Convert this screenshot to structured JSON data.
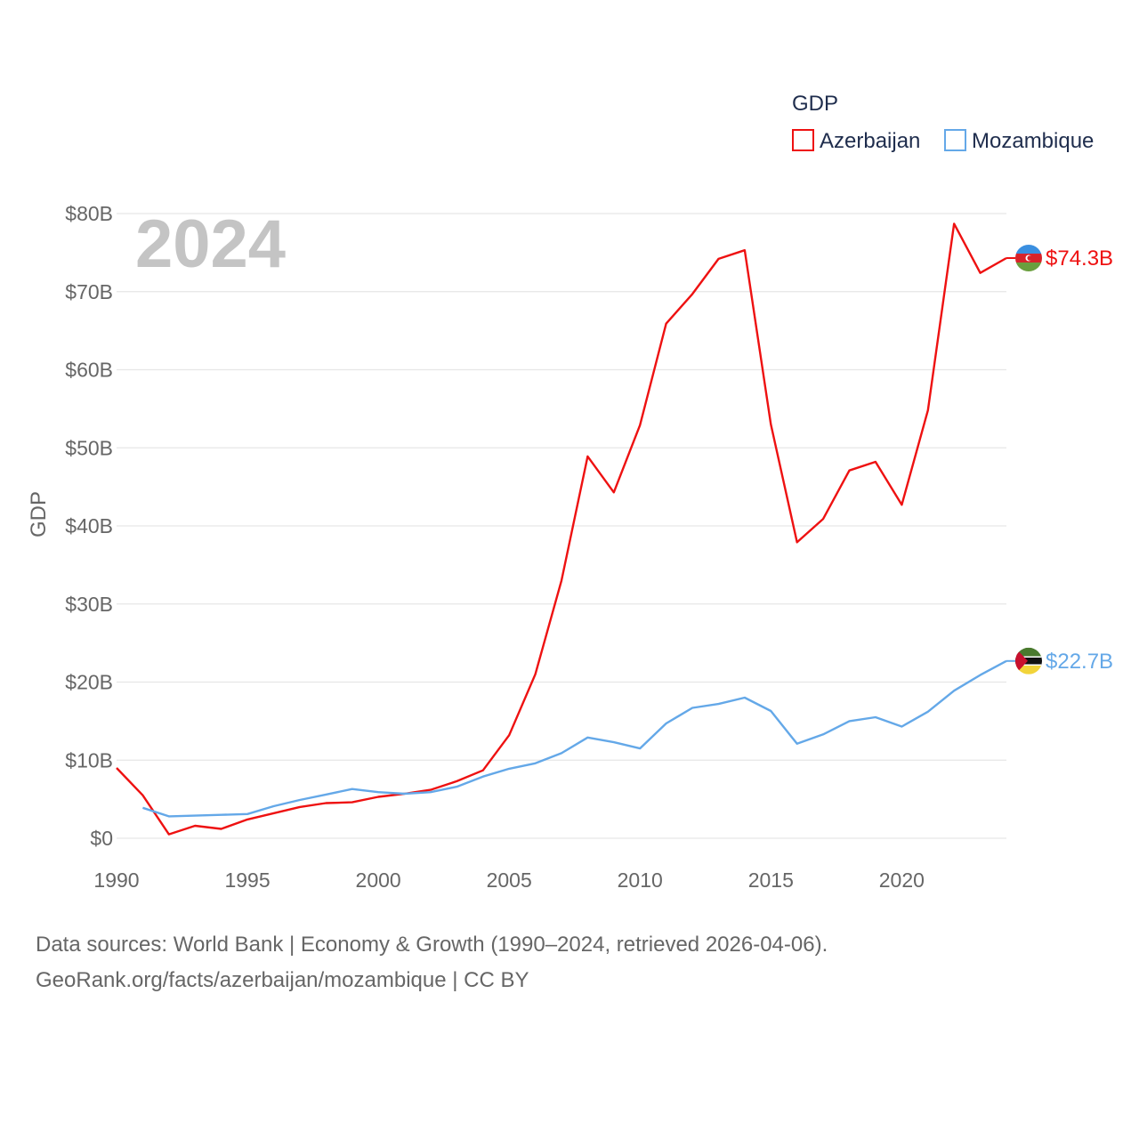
{
  "chart_data": {
    "type": "line",
    "legend_title": "GDP",
    "ylabel": "GDP",
    "year_label": "2024",
    "ylim": [
      0,
      80
    ],
    "xlim": [
      1990,
      2024
    ],
    "y_ticks": [
      {
        "value": 0,
        "label": "$0"
      },
      {
        "value": 10,
        "label": "$10B"
      },
      {
        "value": 20,
        "label": "$20B"
      },
      {
        "value": 30,
        "label": "$30B"
      },
      {
        "value": 40,
        "label": "$40B"
      },
      {
        "value": 50,
        "label": "$50B"
      },
      {
        "value": 60,
        "label": "$60B"
      },
      {
        "value": 70,
        "label": "$70B"
      },
      {
        "value": 80,
        "label": "$80B"
      }
    ],
    "x_ticks": [
      {
        "value": 1990,
        "label": "1990"
      },
      {
        "value": 1995,
        "label": "1995"
      },
      {
        "value": 2000,
        "label": "2000"
      },
      {
        "value": 2005,
        "label": "2005"
      },
      {
        "value": 2010,
        "label": "2010"
      },
      {
        "value": 2015,
        "label": "2015"
      },
      {
        "value": 2020,
        "label": "2020"
      }
    ],
    "series": [
      {
        "name": "Azerbaijan",
        "color": "#ee1111",
        "end_label": "$74.3B",
        "x": [
          1990,
          1991,
          1992,
          1993,
          1994,
          1995,
          1996,
          1997,
          1998,
          1999,
          2000,
          2001,
          2002,
          2003,
          2004,
          2005,
          2006,
          2007,
          2008,
          2009,
          2010,
          2011,
          2012,
          2013,
          2014,
          2015,
          2016,
          2017,
          2018,
          2019,
          2020,
          2021,
          2022,
          2023,
          2024
        ],
        "values": [
          9.0,
          5.5,
          0.5,
          1.6,
          1.2,
          2.4,
          3.2,
          4.0,
          4.5,
          4.6,
          5.3,
          5.7,
          6.2,
          7.3,
          8.7,
          13.2,
          21.0,
          33.0,
          48.9,
          44.3,
          52.9,
          65.9,
          69.7,
          74.2,
          75.3,
          53.0,
          37.9,
          40.9,
          47.1,
          48.2,
          42.7,
          54.8,
          78.7,
          72.4,
          74.3
        ]
      },
      {
        "name": "Mozambique",
        "color": "#64a8e8",
        "end_label": "$22.7B",
        "x": [
          1991,
          1992,
          1993,
          1994,
          1995,
          1996,
          1997,
          1998,
          1999,
          2000,
          2001,
          2002,
          2003,
          2004,
          2005,
          2006,
          2007,
          2008,
          2009,
          2010,
          2011,
          2012,
          2013,
          2014,
          2015,
          2016,
          2017,
          2018,
          2019,
          2020,
          2021,
          2022,
          2023,
          2024
        ],
        "values": [
          3.9,
          2.8,
          2.9,
          3.0,
          3.1,
          4.1,
          4.9,
          5.6,
          6.3,
          5.9,
          5.7,
          5.9,
          6.6,
          7.9,
          8.9,
          9.6,
          10.9,
          12.9,
          12.3,
          11.5,
          14.7,
          16.7,
          17.2,
          18.0,
          16.3,
          12.1,
          13.3,
          15.0,
          15.5,
          14.3,
          16.2,
          18.9,
          20.9,
          22.7
        ]
      }
    ]
  },
  "flags": {
    "azerbaijan": {
      "colors": [
        "#3a8fe0",
        "#d8232a",
        "#6a9f3e"
      ]
    },
    "mozambique": {
      "colors": [
        "#4a7a2e",
        "#111111",
        "#f2d43a",
        "#c8102e"
      ]
    }
  },
  "footer": {
    "line1": "Data sources: World Bank | Economy & Growth (1990–2024, retrieved 2026-04-06).",
    "line2": "GeoRank.org/facts/azerbaijan/mozambique | CC BY"
  }
}
